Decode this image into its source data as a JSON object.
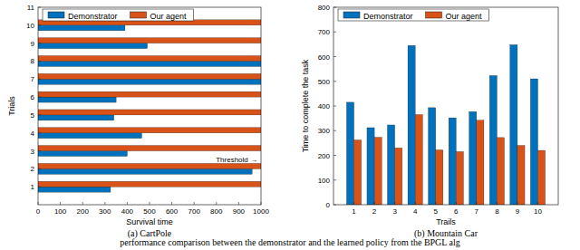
{
  "chart_data": [
    {
      "type": "bar",
      "orientation": "horizontal",
      "title": "(a) CartPole",
      "x_label": "Survival time",
      "y_label": "Trials",
      "categories": [
        1,
        2,
        3,
        4,
        5,
        6,
        7,
        8,
        9,
        10
      ],
      "series": [
        {
          "name": "Demonstrator",
          "color": "#0072bd",
          "values": [
            325,
            960,
            400,
            465,
            340,
            350,
            1000,
            1000,
            490,
            390
          ]
        },
        {
          "name": "Our agent",
          "color": "#d95319",
          "values": [
            1000,
            1000,
            1000,
            1000,
            1000,
            1000,
            1000,
            1000,
            1000,
            1000
          ]
        }
      ],
      "xlim": [
        0,
        1000
      ],
      "xticks": [
        0,
        100,
        200,
        300,
        400,
        500,
        600,
        700,
        800,
        900,
        1000
      ],
      "ylim": [
        0,
        11
      ],
      "yticks": [
        1,
        2,
        3,
        4,
        5,
        6,
        7,
        8,
        9,
        10,
        11
      ],
      "annotation": "Threshold →",
      "legend": "upper left",
      "grid": false
    },
    {
      "type": "bar",
      "title": "(b) Mountain Car",
      "x_label": "Trails",
      "y_label": "Time to complete the task",
      "categories": [
        "1",
        "2",
        "3",
        "4",
        "5",
        "6",
        "7",
        "8",
        "9",
        "10"
      ],
      "series": [
        {
          "name": "Demonstrator",
          "color": "#0072bd",
          "values": [
            415,
            312,
            323,
            645,
            393,
            352,
            377,
            523,
            648,
            510
          ]
        },
        {
          "name": "Our agent",
          "color": "#d95319",
          "values": [
            262,
            273,
            230,
            365,
            222,
            215,
            342,
            272,
            240,
            220
          ]
        }
      ],
      "ylim": [
        0,
        800
      ],
      "yticks": [
        0,
        100,
        200,
        300,
        400,
        500,
        600,
        700,
        800
      ],
      "legend": "upper left",
      "grid": false
    }
  ],
  "caption": "performance comparison between the demonstrator and the learned policy from the BPGL alg"
}
